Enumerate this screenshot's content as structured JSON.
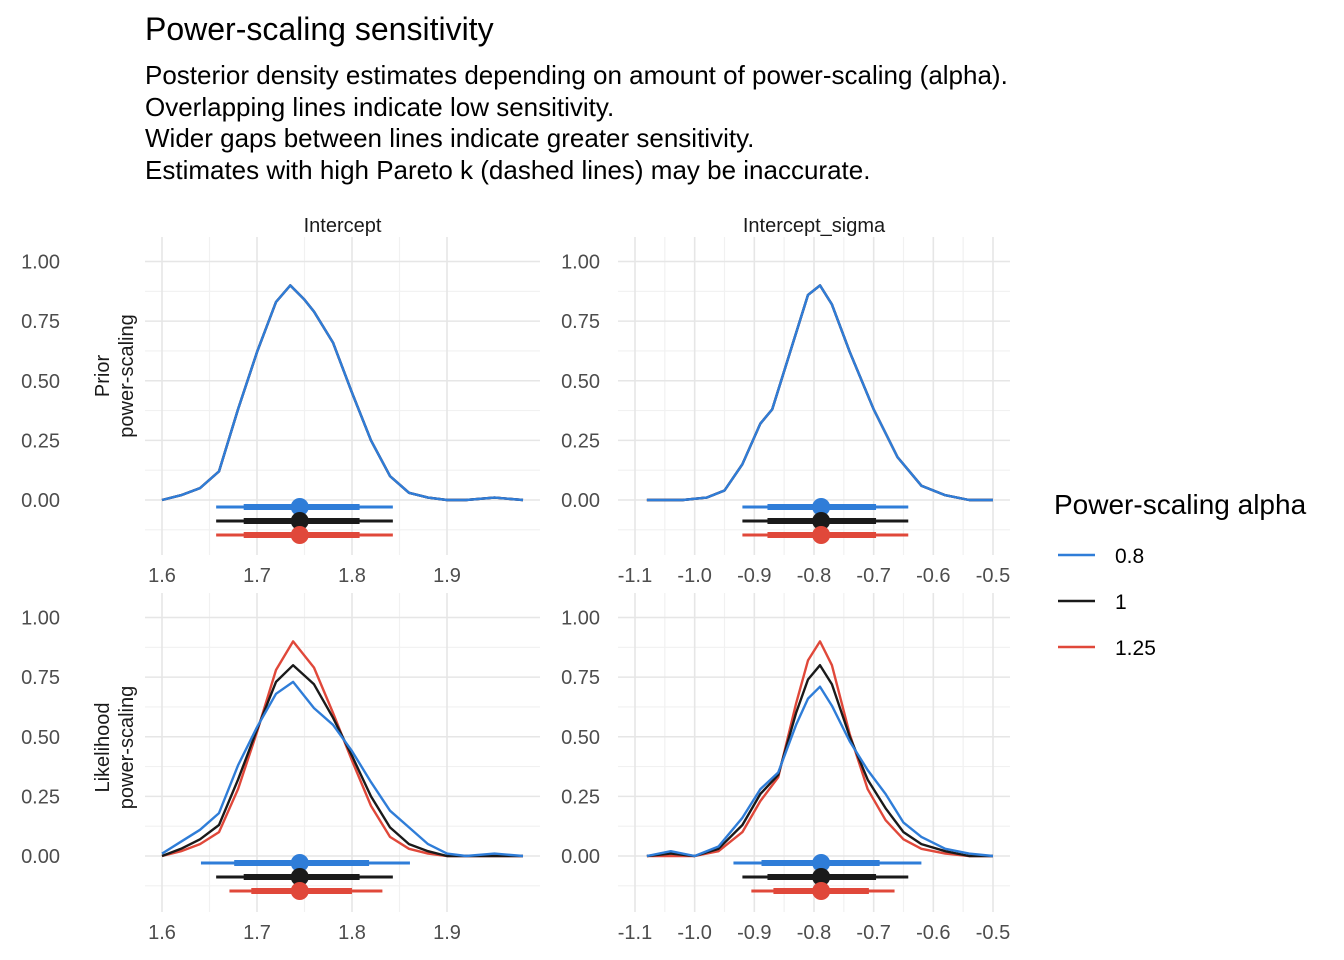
{
  "title": "Power-scaling sensitivity",
  "subtitle": [
    "Posterior density estimates depending on amount of power-scaling (alpha).",
    "Overlapping lines indicate low sensitivity.",
    "Wider gaps between lines indicate greater sensitivity.",
    "Estimates with high Pareto k (dashed lines) may be inaccurate."
  ],
  "chart_data": {
    "type": "line",
    "legend": {
      "title": "Power-scaling alpha",
      "position": "right",
      "entries": [
        {
          "label": "0.8",
          "color": "#2f7dd8"
        },
        {
          "label": "1",
          "color": "#1a1a1a"
        },
        {
          "label": "1.25",
          "color": "#e0483a"
        }
      ]
    },
    "columns": [
      "Intercept",
      "Intercept_sigma"
    ],
    "rows": [
      {
        "label_lines": [
          "Prior",
          "power-scaling"
        ]
      },
      {
        "label_lines": [
          "Likelihood",
          "power-scaling"
        ]
      }
    ],
    "ylim": [
      0,
      1
    ],
    "y_ticks": [
      "0.00",
      "0.25",
      "0.50",
      "0.75",
      "1.00"
    ],
    "y_tick_values": [
      0,
      0.25,
      0.5,
      0.75,
      1.0
    ],
    "grid": true,
    "panels": [
      {
        "row": 0,
        "col": 0,
        "xlim": [
          1.6,
          1.98
        ],
        "x_ticks": [
          "1.6",
          "1.7",
          "1.8",
          "1.9"
        ],
        "x_tick_values": [
          1.6,
          1.7,
          1.8,
          1.9
        ],
        "series": [
          {
            "name": "0.8",
            "x": [
              1.6,
              1.62,
              1.64,
              1.66,
              1.68,
              1.7,
              1.72,
              1.735,
              1.75,
              1.76,
              1.78,
              1.8,
              1.82,
              1.84,
              1.86,
              1.88,
              1.9,
              1.92,
              1.95,
              1.98
            ],
            "y": [
              0.0,
              0.02,
              0.05,
              0.12,
              0.38,
              0.62,
              0.83,
              0.9,
              0.84,
              0.79,
              0.66,
              0.45,
              0.25,
              0.1,
              0.03,
              0.01,
              0.0,
              0.0,
              0.01,
              0.0
            ]
          },
          {
            "name": "1",
            "x": [
              1.6,
              1.62,
              1.64,
              1.66,
              1.68,
              1.7,
              1.72,
              1.735,
              1.75,
              1.76,
              1.78,
              1.8,
              1.82,
              1.84,
              1.86,
              1.88,
              1.9,
              1.92,
              1.95,
              1.98
            ],
            "y": [
              0.0,
              0.02,
              0.05,
              0.12,
              0.38,
              0.62,
              0.83,
              0.9,
              0.84,
              0.79,
              0.66,
              0.45,
              0.25,
              0.1,
              0.03,
              0.01,
              0.0,
              0.0,
              0.01,
              0.0
            ]
          },
          {
            "name": "1.25",
            "x": [
              1.6,
              1.62,
              1.64,
              1.66,
              1.68,
              1.7,
              1.72,
              1.735,
              1.75,
              1.76,
              1.78,
              1.8,
              1.82,
              1.84,
              1.86,
              1.88,
              1.9,
              1.92,
              1.95,
              1.98
            ],
            "y": [
              0.0,
              0.02,
              0.05,
              0.12,
              0.38,
              0.62,
              0.83,
              0.9,
              0.84,
              0.79,
              0.66,
              0.45,
              0.25,
              0.1,
              0.03,
              0.01,
              0.0,
              0.0,
              0.01,
              0.0
            ]
          }
        ],
        "intervals": [
          {
            "name": "0.8",
            "point": 1.745,
            "inner": [
              1.686,
              1.808
            ],
            "outer": [
              1.657,
              1.843
            ]
          },
          {
            "name": "1",
            "point": 1.745,
            "inner": [
              1.686,
              1.808
            ],
            "outer": [
              1.657,
              1.843
            ]
          },
          {
            "name": "1.25",
            "point": 1.745,
            "inner": [
              1.686,
              1.808
            ],
            "outer": [
              1.657,
              1.843
            ]
          }
        ]
      },
      {
        "row": 0,
        "col": 1,
        "xlim": [
          -1.1,
          -0.5
        ],
        "x_ticks": [
          "-1.1",
          "-1.0",
          "-0.9",
          "-0.8",
          "-0.7",
          "-0.6",
          "-0.5"
        ],
        "x_tick_values": [
          -1.1,
          -1.0,
          -0.9,
          -0.8,
          -0.7,
          -0.6,
          -0.5
        ],
        "series": [
          {
            "name": "0.8",
            "x": [
              -1.08,
              -1.02,
              -0.98,
              -0.95,
              -0.92,
              -0.89,
              -0.87,
              -0.84,
              -0.81,
              -0.79,
              -0.77,
              -0.74,
              -0.7,
              -0.66,
              -0.62,
              -0.58,
              -0.54,
              -0.5
            ],
            "y": [
              0.0,
              0.0,
              0.01,
              0.04,
              0.15,
              0.32,
              0.38,
              0.62,
              0.86,
              0.9,
              0.82,
              0.62,
              0.38,
              0.18,
              0.06,
              0.02,
              0.0,
              0.0
            ]
          },
          {
            "name": "1",
            "x": [
              -1.08,
              -1.02,
              -0.98,
              -0.95,
              -0.92,
              -0.89,
              -0.87,
              -0.84,
              -0.81,
              -0.79,
              -0.77,
              -0.74,
              -0.7,
              -0.66,
              -0.62,
              -0.58,
              -0.54,
              -0.5
            ],
            "y": [
              0.0,
              0.0,
              0.01,
              0.04,
              0.15,
              0.32,
              0.38,
              0.62,
              0.86,
              0.9,
              0.82,
              0.62,
              0.38,
              0.18,
              0.06,
              0.02,
              0.0,
              0.0
            ]
          },
          {
            "name": "1.25",
            "x": [
              -1.08,
              -1.02,
              -0.98,
              -0.95,
              -0.92,
              -0.89,
              -0.87,
              -0.84,
              -0.81,
              -0.79,
              -0.77,
              -0.74,
              -0.7,
              -0.66,
              -0.62,
              -0.58,
              -0.54,
              -0.5
            ],
            "y": [
              0.0,
              0.0,
              0.01,
              0.04,
              0.15,
              0.32,
              0.38,
              0.62,
              0.86,
              0.9,
              0.82,
              0.62,
              0.38,
              0.18,
              0.06,
              0.02,
              0.0,
              0.0
            ]
          }
        ],
        "intervals": [
          {
            "name": "0.8",
            "point": -0.788,
            "inner": [
              -0.878,
              -0.696
            ],
            "outer": [
              -0.92,
              -0.642
            ]
          },
          {
            "name": "1",
            "point": -0.788,
            "inner": [
              -0.878,
              -0.696
            ],
            "outer": [
              -0.92,
              -0.642
            ]
          },
          {
            "name": "1.25",
            "point": -0.788,
            "inner": [
              -0.878,
              -0.696
            ],
            "outer": [
              -0.92,
              -0.642
            ]
          }
        ]
      },
      {
        "row": 1,
        "col": 0,
        "xlim": [
          1.6,
          1.98
        ],
        "x_ticks": [
          "1.6",
          "1.7",
          "1.8",
          "1.9"
        ],
        "x_tick_values": [
          1.6,
          1.7,
          1.8,
          1.9
        ],
        "series": [
          {
            "name": "0.8",
            "x": [
              1.6,
              1.62,
              1.64,
              1.66,
              1.68,
              1.7,
              1.72,
              1.738,
              1.76,
              1.78,
              1.8,
              1.82,
              1.84,
              1.86,
              1.88,
              1.9,
              1.92,
              1.95,
              1.98
            ],
            "y": [
              0.01,
              0.06,
              0.11,
              0.18,
              0.38,
              0.54,
              0.68,
              0.73,
              0.62,
              0.55,
              0.44,
              0.31,
              0.19,
              0.12,
              0.05,
              0.01,
              0.0,
              0.01,
              0.0
            ]
          },
          {
            "name": "1",
            "x": [
              1.6,
              1.62,
              1.64,
              1.66,
              1.68,
              1.7,
              1.72,
              1.738,
              1.76,
              1.78,
              1.8,
              1.82,
              1.84,
              1.86,
              1.88,
              1.9,
              1.92,
              1.95,
              1.98
            ],
            "y": [
              0.0,
              0.03,
              0.07,
              0.13,
              0.32,
              0.53,
              0.73,
              0.8,
              0.72,
              0.58,
              0.42,
              0.25,
              0.12,
              0.05,
              0.02,
              0.0,
              0.0,
              0.0,
              0.0
            ]
          },
          {
            "name": "1.25",
            "x": [
              1.6,
              1.62,
              1.64,
              1.66,
              1.68,
              1.7,
              1.72,
              1.738,
              1.76,
              1.78,
              1.8,
              1.82,
              1.84,
              1.86,
              1.88,
              1.9,
              1.92,
              1.95,
              1.98
            ],
            "y": [
              0.0,
              0.02,
              0.05,
              0.1,
              0.28,
              0.52,
              0.78,
              0.9,
              0.79,
              0.6,
              0.4,
              0.21,
              0.08,
              0.03,
              0.01,
              0.0,
              0.0,
              0.0,
              0.0
            ]
          }
        ],
        "intervals": [
          {
            "name": "0.8",
            "point": 1.745,
            "inner": [
              1.676,
              1.818
            ],
            "outer": [
              1.641,
              1.861
            ]
          },
          {
            "name": "1",
            "point": 1.745,
            "inner": [
              1.686,
              1.808
            ],
            "outer": [
              1.657,
              1.843
            ]
          },
          {
            "name": "1.25",
            "point": 1.745,
            "inner": [
              1.694,
              1.8
            ],
            "outer": [
              1.671,
              1.832
            ]
          }
        ]
      },
      {
        "row": 1,
        "col": 1,
        "xlim": [
          -1.1,
          -0.5
        ],
        "x_ticks": [
          "-1.1",
          "-1.0",
          "-0.9",
          "-0.8",
          "-0.7",
          "-0.6",
          "-0.5"
        ],
        "x_tick_values": [
          -1.1,
          -1.0,
          -0.9,
          -0.8,
          -0.7,
          -0.6,
          -0.5
        ],
        "series": [
          {
            "name": "0.8",
            "x": [
              -1.08,
              -1.04,
              -1.0,
              -0.96,
              -0.92,
              -0.89,
              -0.86,
              -0.83,
              -0.81,
              -0.79,
              -0.77,
              -0.74,
              -0.71,
              -0.68,
              -0.65,
              -0.62,
              -0.58,
              -0.54,
              -0.5
            ],
            "y": [
              0.0,
              0.02,
              0.0,
              0.04,
              0.16,
              0.28,
              0.35,
              0.55,
              0.66,
              0.71,
              0.63,
              0.48,
              0.36,
              0.26,
              0.14,
              0.08,
              0.03,
              0.01,
              0.0
            ]
          },
          {
            "name": "1",
            "x": [
              -1.08,
              -1.04,
              -1.0,
              -0.96,
              -0.92,
              -0.89,
              -0.86,
              -0.83,
              -0.81,
              -0.79,
              -0.77,
              -0.74,
              -0.71,
              -0.68,
              -0.65,
              -0.62,
              -0.58,
              -0.54,
              -0.5
            ],
            "y": [
              0.0,
              0.01,
              0.0,
              0.03,
              0.13,
              0.26,
              0.34,
              0.6,
              0.74,
              0.8,
              0.72,
              0.5,
              0.32,
              0.2,
              0.1,
              0.05,
              0.02,
              0.0,
              0.0
            ]
          },
          {
            "name": "1.25",
            "x": [
              -1.08,
              -1.04,
              -1.0,
              -0.96,
              -0.92,
              -0.89,
              -0.86,
              -0.83,
              -0.81,
              -0.79,
              -0.77,
              -0.74,
              -0.71,
              -0.68,
              -0.65,
              -0.62,
              -0.58,
              -0.54,
              -0.5
            ],
            "y": [
              0.0,
              0.0,
              0.0,
              0.02,
              0.1,
              0.23,
              0.33,
              0.64,
              0.82,
              0.9,
              0.8,
              0.51,
              0.28,
              0.15,
              0.07,
              0.03,
              0.01,
              0.0,
              0.0
            ]
          }
        ],
        "intervals": [
          {
            "name": "0.8",
            "point": -0.788,
            "inner": [
              -0.888,
              -0.69
            ],
            "outer": [
              -0.935,
              -0.62
            ]
          },
          {
            "name": "1",
            "point": -0.788,
            "inner": [
              -0.878,
              -0.696
            ],
            "outer": [
              -0.92,
              -0.642
            ]
          },
          {
            "name": "1.25",
            "point": -0.788,
            "inner": [
              -0.868,
              -0.708
            ],
            "outer": [
              -0.905,
              -0.665
            ]
          }
        ]
      }
    ]
  }
}
